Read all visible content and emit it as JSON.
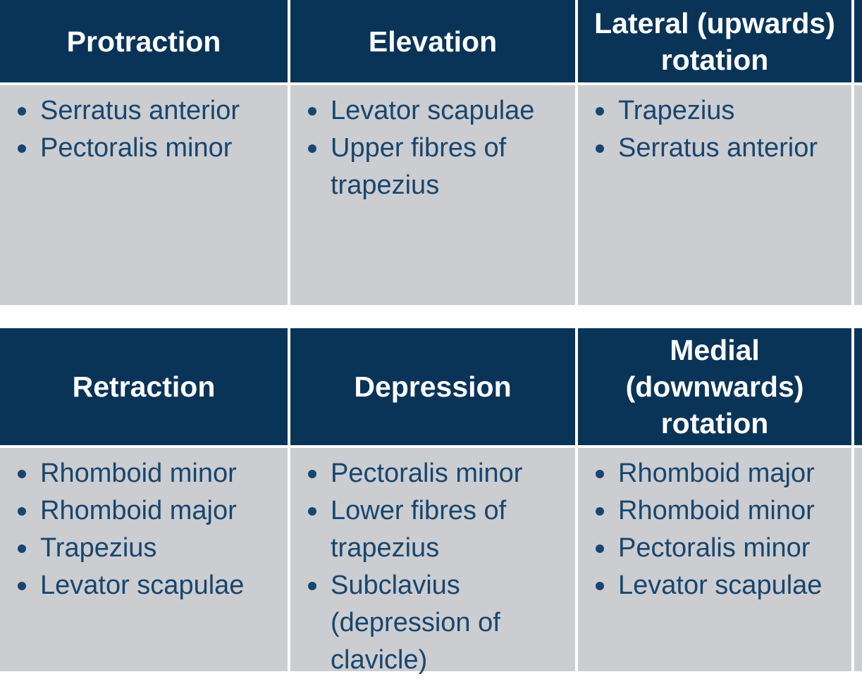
{
  "colors": {
    "header_bg": "#093458",
    "header_text": "#ffffff",
    "body_bg": "#cccdd1",
    "body_text": "#17466e",
    "gap": "#ffffff"
  },
  "tables": [
    {
      "name": "scapular-movements-upper",
      "columns": [
        {
          "header": "Protraction",
          "header_lines": [
            "Protraction"
          ],
          "items": [
            "Serratus anterior",
            "Pectoralis minor"
          ]
        },
        {
          "header": "Elevation",
          "header_lines": [
            "Elevation"
          ],
          "items": [
            "Levator scapulae",
            "Upper fibres of trapezius"
          ]
        },
        {
          "header": "Lateral (upwards) rotation",
          "header_lines": [
            "Lateral (upwards)",
            "rotation"
          ],
          "items": [
            "Trapezius",
            "Serratus anterior"
          ]
        }
      ]
    },
    {
      "name": "scapular-movements-lower",
      "columns": [
        {
          "header": "Retraction",
          "header_lines": [
            "Retraction"
          ],
          "items": [
            "Rhomboid minor",
            "Rhomboid major",
            "Trapezius",
            "Levator scapulae"
          ]
        },
        {
          "header": "Depression",
          "header_lines": [
            "Depression"
          ],
          "items": [
            "Pectoralis minor",
            "Lower fibres of trapezius",
            "Subclavius (depression of clavicle)"
          ]
        },
        {
          "header": "Medial (downwards) rotation",
          "header_lines": [
            "Medial",
            "(downwards)",
            "rotation"
          ],
          "items": [
            "Rhomboid major",
            "Rhomboid minor",
            "Pectoralis minor",
            "Levator scapulae"
          ]
        }
      ]
    }
  ]
}
